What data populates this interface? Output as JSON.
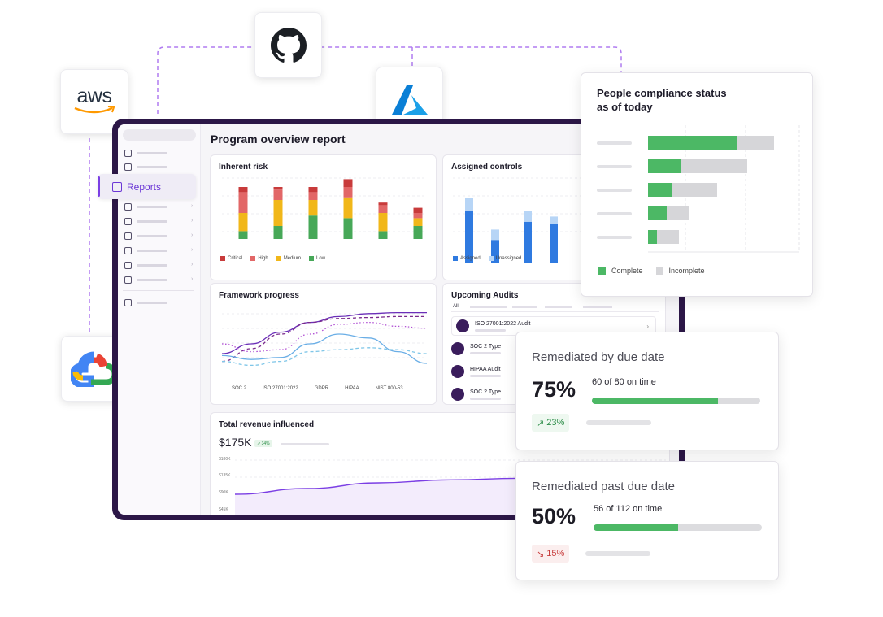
{
  "colors": {
    "brand_purple": "#6b36d6",
    "device_frame": "#2c1747",
    "critical": "#c83b3b",
    "high": "#e26767",
    "medium": "#f1b719",
    "low": "#47a858",
    "assigned": "#2f7ae0",
    "unassigned": "#b7d5f6",
    "complete": "#4cb865",
    "incomplete": "#d6d6d9",
    "delta_up": "#2a8c46",
    "delta_down": "#c73a3a"
  },
  "integrations": [
    {
      "name": "aws",
      "icon": "aws-logo"
    },
    {
      "name": "github",
      "icon": "github-logo"
    },
    {
      "name": "azure",
      "icon": "azure-logo"
    },
    {
      "name": "google-cloud",
      "icon": "google-cloud-logo"
    }
  ],
  "aws_text": "aws",
  "sidebar": {
    "active_item": {
      "label": "Reports",
      "icon": "reports-icon"
    },
    "icons": [
      "home-icon",
      "list-icon",
      "clipboard-icon",
      "shield-icon",
      "book-icon",
      "database-icon",
      "monitor-icon",
      "users-icon",
      "plug-icon"
    ]
  },
  "report": {
    "title": "Program overview report",
    "inherent_risk": {
      "title": "Inherent risk",
      "legend": [
        "Critical",
        "High",
        "Medium",
        "Low"
      ]
    },
    "assigned_controls": {
      "title": "Assigned controls",
      "legend": [
        "Assigned",
        "Unassigned"
      ]
    },
    "framework_progress": {
      "title": "Framework progress",
      "legend": [
        "SOC 2",
        "ISO 27001:2022",
        "GDPR",
        "HIPAA",
        "NIST 800-53"
      ]
    },
    "upcoming_audits": {
      "title": "Upcoming Audits",
      "tab_all": "All",
      "items": [
        "ISO 27001:2022 Audit",
        "SOC 2 Type",
        "HIPAA Audit",
        "SOC 2 Type"
      ]
    },
    "revenue": {
      "title": "Total revenue influenced",
      "value": "$175K",
      "delta": "34%",
      "y_ticks": [
        "$180K",
        "$135K",
        "$90K",
        "$45K"
      ]
    }
  },
  "people_compliance": {
    "title_line1": "People compliance status",
    "title_line2": "as of today",
    "legend_complete": "Complete",
    "legend_incomplete": "Incomplete"
  },
  "remediated_due": {
    "title": "Remediated by due date",
    "percent": "75%",
    "detail": "60 of 80 on time",
    "progress": 0.75,
    "delta": "23%",
    "delta_direction": "up"
  },
  "remediated_past": {
    "title": "Remediated past due date",
    "percent": "50%",
    "detail": "56 of 112 on time",
    "progress": 0.5,
    "delta": "15%",
    "delta_direction": "down"
  },
  "chart_data": [
    {
      "type": "bar",
      "stacked": true,
      "title": "Inherent risk",
      "categories": [
        "1",
        "2",
        "3",
        "4",
        "5",
        "6"
      ],
      "series": [
        {
          "name": "Low",
          "values": [
            3,
            5,
            9,
            8,
            3,
            5
          ]
        },
        {
          "name": "Medium",
          "values": [
            7,
            10,
            6,
            8,
            7,
            3
          ]
        },
        {
          "name": "High",
          "values": [
            8,
            4,
            3,
            4,
            3,
            2
          ]
        },
        {
          "name": "Critical",
          "values": [
            2,
            1,
            2,
            3,
            1,
            2
          ]
        }
      ]
    },
    {
      "type": "bar",
      "stacked": true,
      "title": "Assigned controls",
      "categories": [
        "1",
        "2",
        "3",
        "4"
      ],
      "series": [
        {
          "name": "Assigned",
          "values": [
            20,
            9,
            16,
            15
          ]
        },
        {
          "name": "Unassigned",
          "values": [
            5,
            4,
            4,
            3
          ]
        }
      ]
    },
    {
      "type": "line",
      "title": "Framework progress",
      "x": [
        0,
        1,
        2,
        3,
        4,
        5,
        6,
        7
      ],
      "series": [
        {
          "name": "SOC 2",
          "values": [
            20,
            30,
            42,
            52,
            58,
            61,
            62,
            62
          ]
        },
        {
          "name": "ISO 27001:2022",
          "values": [
            12,
            25,
            40,
            52,
            56,
            57,
            58,
            58
          ]
        },
        {
          "name": "GDPR",
          "values": [
            30,
            22,
            24,
            40,
            50,
            52,
            48,
            46
          ]
        },
        {
          "name": "HIPAA",
          "values": [
            18,
            14,
            16,
            30,
            40,
            36,
            22,
            10
          ]
        },
        {
          "name": "NIST 800-53",
          "values": [
            12,
            8,
            12,
            22,
            24,
            26,
            24,
            20
          ]
        }
      ]
    },
    {
      "type": "bar",
      "orientation": "horizontal",
      "stacked": true,
      "title": "People compliance status as of today",
      "categories": [
        "1",
        "2",
        "3",
        "4",
        "5"
      ],
      "series": [
        {
          "name": "Complete",
          "values": [
            11,
            4,
            3,
            2.3,
            1.1
          ]
        },
        {
          "name": "Incomplete",
          "values": [
            4.5,
            8.2,
            5.5,
            2.7,
            2.7
          ]
        }
      ]
    },
    {
      "type": "line",
      "title": "Total revenue influenced",
      "ylim": [
        45000,
        180000
      ],
      "x": [
        0,
        1,
        2,
        3,
        4,
        5,
        6
      ],
      "series": [
        {
          "name": "Revenue",
          "values": [
            90000,
            105000,
            120000,
            128000,
            132000,
            134000,
            136000
          ]
        }
      ]
    }
  ]
}
